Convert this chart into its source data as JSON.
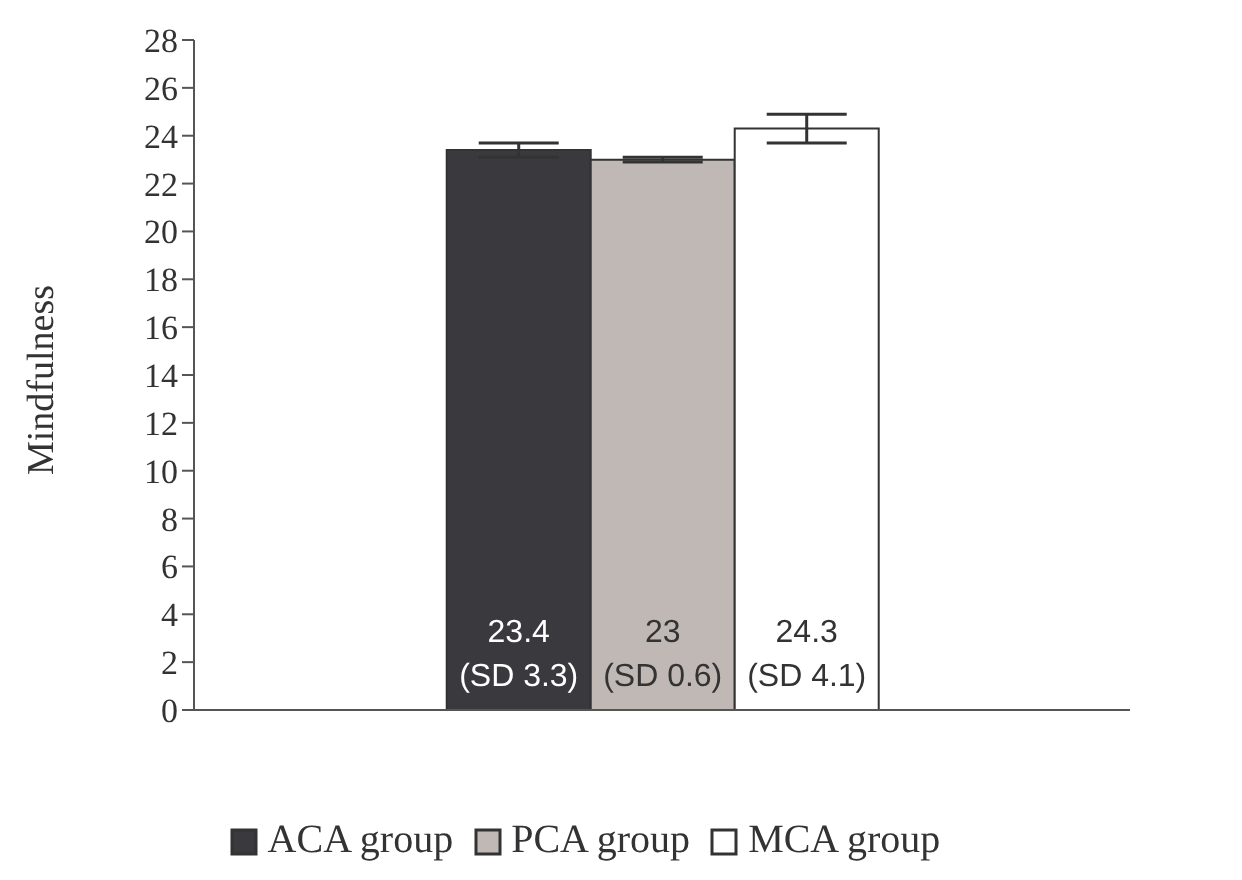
{
  "chart_data": {
    "type": "bar",
    "ylabel": "Mindfulness",
    "categories": [
      null
    ],
    "series": [
      {
        "name": "ACA group",
        "color": "#3a393e",
        "values": [
          23.4
        ],
        "errors": [
          0.3
        ],
        "value_labels": [
          "23.4 (SD 3.3)"
        ]
      },
      {
        "name": "PCA group",
        "color": "#c0b8b4",
        "values": [
          23
        ],
        "errors": [
          0.1
        ],
        "value_labels": [
          "23 (SD 0.6)"
        ]
      },
      {
        "name": "MCA group",
        "color": "#ffffff",
        "values": [
          24.3
        ],
        "errors": [
          0.6
        ],
        "value_labels": [
          "24.3 (SD 4.1)"
        ]
      }
    ],
    "ylim": [
      0,
      28
    ],
    "yticks": [
      0,
      2,
      4,
      6,
      8,
      10,
      12,
      14,
      16,
      18,
      20,
      22,
      24,
      26,
      28
    ],
    "grid": false,
    "legend": "bottom"
  }
}
